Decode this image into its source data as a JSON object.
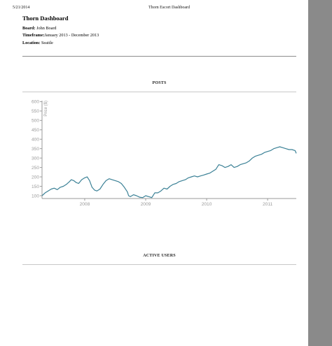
{
  "print_header": {
    "date": "5/21/2014",
    "title": "Thorn Escort Dashboard"
  },
  "dashboard": {
    "title": "Thorn Dashboard",
    "board_label": "Board:",
    "board_value": "John Board",
    "timeframe_label": "Timeframe:",
    "timeframe_value": "January 2013 - December 2013",
    "location_label": "Location:",
    "location_value": "Seattle"
  },
  "sections": {
    "posts_title": "POSTS",
    "active_users_title": "ACTIVE USERS"
  },
  "colors": {
    "line": "#3b8196",
    "axis": "#9a9a9a"
  },
  "chart_data": {
    "type": "line",
    "title": "POSTS",
    "xlabel": "",
    "ylabel": "Price ($)",
    "ylim": [
      85,
      620
    ],
    "xlim": [
      2007.3,
      2011.47
    ],
    "yticks": [
      100,
      150,
      200,
      250,
      300,
      350,
      400,
      450,
      500,
      550,
      600
    ],
    "xticks": [
      "2008",
      "2009",
      "2010",
      "2011"
    ],
    "grid": false,
    "legend": "none",
    "series": [
      {
        "x": [
          2007.3,
          2007.35,
          2007.4,
          2007.45,
          2007.5,
          2007.55,
          2007.6,
          2007.65,
          2007.7,
          2007.75,
          2007.78,
          2007.82,
          2007.86,
          2007.9,
          2007.95,
          2008.0,
          2008.04,
          2008.08,
          2008.12,
          2008.16,
          2008.2,
          2008.25,
          2008.3,
          2008.35,
          2008.4,
          2008.45,
          2008.5,
          2008.55,
          2008.6,
          2008.65,
          2008.7,
          2008.72,
          2008.75,
          2008.8,
          2008.85,
          2008.9,
          2008.95,
          2009.0,
          2009.05,
          2009.1,
          2009.15,
          2009.2,
          2009.25,
          2009.3,
          2009.35,
          2009.4,
          2009.45,
          2009.5,
          2009.55,
          2009.6,
          2009.65,
          2009.7,
          2009.75,
          2009.8,
          2009.85,
          2009.9,
          2009.95,
          2010.0,
          2010.05,
          2010.1,
          2010.15,
          2010.2,
          2010.25,
          2010.3,
          2010.35,
          2010.4,
          2010.45,
          2010.5,
          2010.55,
          2010.6,
          2010.65,
          2010.7,
          2010.75,
          2010.8,
          2010.85,
          2010.9,
          2010.95,
          2011.0,
          2011.05,
          2011.1,
          2011.15,
          2011.2,
          2011.25,
          2011.3,
          2011.35,
          2011.4,
          2011.45,
          2011.47
        ],
        "y": [
          100,
          115,
          125,
          135,
          140,
          132,
          145,
          150,
          160,
          175,
          185,
          180,
          170,
          165,
          185,
          195,
          200,
          180,
          145,
          130,
          125,
          135,
          160,
          180,
          190,
          185,
          180,
          175,
          165,
          145,
          120,
          100,
          95,
          105,
          100,
          92,
          90,
          100,
          95,
          90,
          115,
          115,
          125,
          140,
          135,
          150,
          160,
          165,
          175,
          180,
          185,
          195,
          200,
          205,
          200,
          205,
          210,
          215,
          220,
          230,
          240,
          265,
          260,
          250,
          255,
          265,
          250,
          255,
          265,
          270,
          275,
          285,
          300,
          310,
          315,
          320,
          330,
          335,
          340,
          350,
          355,
          360,
          355,
          350,
          345,
          345,
          340,
          325
        ]
      }
    ]
  }
}
